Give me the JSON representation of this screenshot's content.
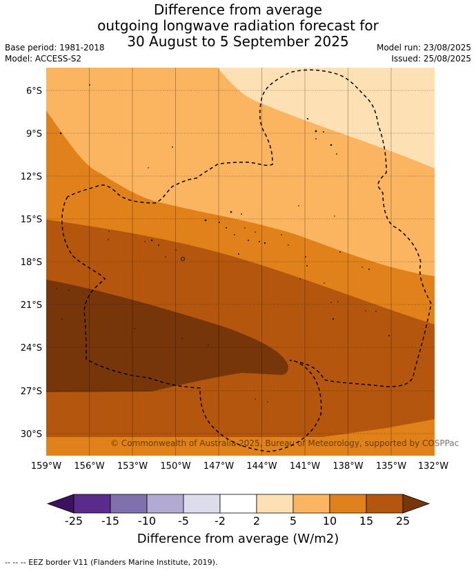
{
  "header": {
    "title_line1": "Difference from average",
    "title_line2": "outgoing longwave radiation forecast for",
    "title_line3": "30 August to 5 September 2025",
    "base_period": "Base period: 1981-2018",
    "model": "Model: ACCESS-S2",
    "model_run": "Model run: 23/08/2025",
    "issued": "Issued: 25/08/2025"
  },
  "map": {
    "lat_labels": [
      "6°S",
      "9°S",
      "12°S",
      "15°S",
      "18°S",
      "21°S",
      "24°S",
      "27°S",
      "30°S"
    ],
    "lon_labels": [
      "159°W",
      "156°W",
      "153°W",
      "150°W",
      "147°W",
      "144°W",
      "141°W",
      "138°W",
      "135°W",
      "132°W"
    ],
    "copyright": "© Commonwealth of Australia 2025, Bureau of Meteorology, supported by COSPPac",
    "band_colors": {
      "b2_5": "#fde1b5",
      "b5_10": "#fbb45f",
      "b10_15": "#e08119",
      "b15_25": "#b4560d",
      "b25plus": "#77350a"
    }
  },
  "colorbar": {
    "ticks": [
      "-25",
      "-15",
      "-10",
      "-5",
      "-2",
      "2",
      "5",
      "10",
      "15",
      "25"
    ],
    "colors": [
      "#3d1060",
      "#5a2a8c",
      "#8070ad",
      "#b2aad2",
      "#dcdcec",
      "#ffffff",
      "#fde1b5",
      "#fbb45f",
      "#e08119",
      "#b4560d",
      "#77350a"
    ],
    "label": "Difference from average (W/m2)"
  },
  "footer": {
    "legend_note": "--  --  -- EEZ border V11 (Flanders Marine Institute, 2019)."
  }
}
